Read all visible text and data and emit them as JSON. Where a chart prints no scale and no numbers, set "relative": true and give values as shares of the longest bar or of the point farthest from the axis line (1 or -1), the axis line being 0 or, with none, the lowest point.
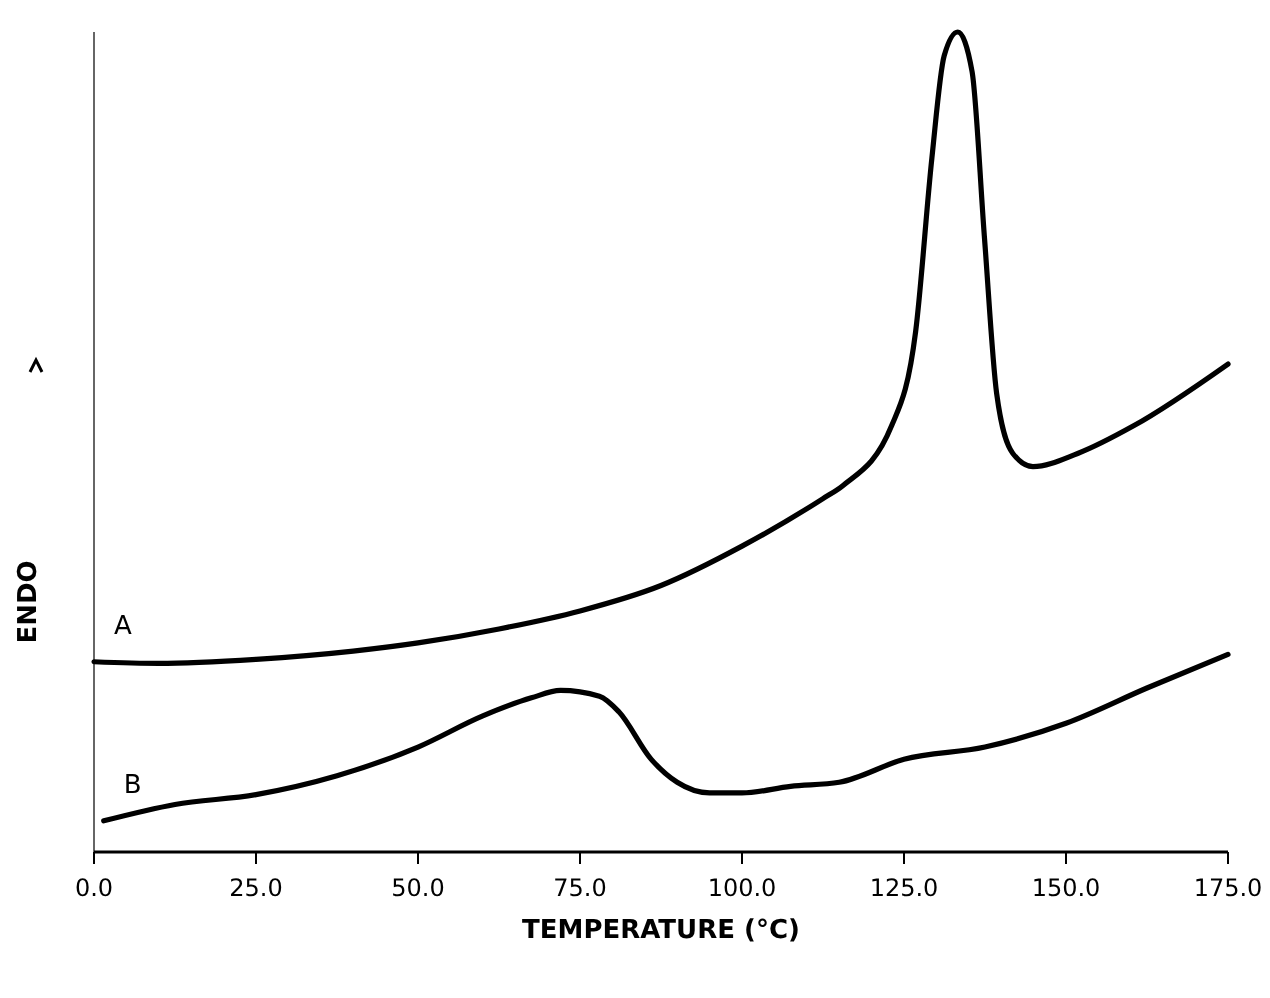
{
  "chart_data": {
    "type": "line",
    "relative": true,
    "xlabel": "TEMPERATURE (°C)",
    "ylabel": "ENDO",
    "xlim": [
      0,
      175
    ],
    "xticks": [
      {
        "value": 0,
        "label": "0.0"
      },
      {
        "value": 25,
        "label": "25.0"
      },
      {
        "value": 50,
        "label": "50.0"
      },
      {
        "value": 75,
        "label": "75.0"
      },
      {
        "value": 100,
        "label": "100.0"
      },
      {
        "value": 125,
        "label": "125.0"
      },
      {
        "value": 150,
        "label": "150.0"
      },
      {
        "value": 175,
        "label": "175.0"
      }
    ],
    "legend": false,
    "grid": false,
    "marker": "none",
    "line_style": "solid",
    "series": [
      {
        "name": "A",
        "color": "#000000",
        "x": [
          0,
          10,
          25,
          40,
          50,
          62.5,
          75,
          87.5,
          100,
          112.5,
          115.6,
          123.1,
          126.8,
          129.3,
          131.2,
          133.3,
          135.5,
          137.4,
          139.3,
          141.8,
          144.9,
          151.8,
          160.5,
          175
        ],
        "values": [
          0.232,
          0.23,
          0.235,
          0.245,
          0.255,
          0.272,
          0.294,
          0.325,
          0.373,
          0.431,
          0.447,
          0.52,
          0.635,
          0.846,
          0.971,
          1,
          0.952,
          0.751,
          0.559,
          0.486,
          0.47,
          0.486,
          0.52,
          0.595
        ]
      },
      {
        "name": "B",
        "color": "#000000",
        "x": [
          1.5,
          12.5,
          25,
          37.5,
          50,
          60,
          67.5,
          72,
          78,
          81,
          86,
          90,
          95,
          100,
          107.5,
          115,
          125,
          137.5,
          150,
          162.5,
          175
        ],
        "values": [
          0.038,
          0.058,
          0.07,
          0.093,
          0.128,
          0.166,
          0.188,
          0.197,
          0.19,
          0.171,
          0.113,
          0.085,
          0.072,
          0.072,
          0.08,
          0.085,
          0.113,
          0.128,
          0.157,
          0.2,
          0.241
        ]
      }
    ]
  }
}
